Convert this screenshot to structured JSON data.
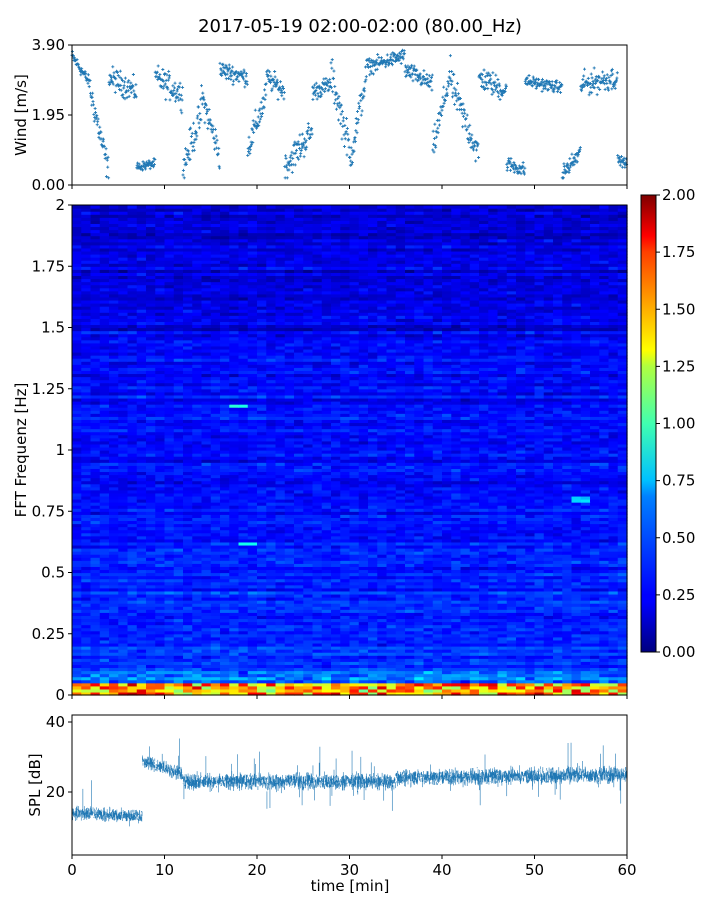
{
  "figure": {
    "title": "2017-05-19 02:00-02:00 (80.00_Hz)"
  },
  "chart_data": [
    {
      "type": "scatter",
      "name": "wind",
      "xlabel": "",
      "ylabel": "Wind [m/s]",
      "xlim": [
        0,
        60
      ],
      "ylim": [
        0,
        3.9
      ],
      "yticks": [
        "0.00",
        "1.95",
        "3.90"
      ],
      "marker_color": "#1f77b4",
      "marker": "+",
      "segments": [
        {
          "x": [
            0,
            2
          ],
          "levels": [
            3.6,
            2.8
          ],
          "spread": 0.4
        },
        {
          "x": [
            2,
            4
          ],
          "levels": [
            2.6,
            0.3
          ],
          "spread": 1.0
        },
        {
          "x": [
            4,
            7
          ],
          "levels": [
            3.0,
            2.6
          ],
          "spread": 0.8
        },
        {
          "x": [
            7,
            9
          ],
          "levels": [
            0.5,
            0.6
          ],
          "spread": 0.3
        },
        {
          "x": [
            9,
            12
          ],
          "levels": [
            3.0,
            2.5
          ],
          "spread": 0.9
        },
        {
          "x": [
            12,
            14
          ],
          "levels": [
            0.5,
            2.0
          ],
          "spread": 1.1
        },
        {
          "x": [
            14,
            16
          ],
          "levels": [
            2.5,
            0.8
          ],
          "spread": 1.0
        },
        {
          "x": [
            16,
            19
          ],
          "levels": [
            3.2,
            3.0
          ],
          "spread": 0.6
        },
        {
          "x": [
            19,
            21
          ],
          "levels": [
            1.0,
            2.5
          ],
          "spread": 1.0
        },
        {
          "x": [
            21,
            23
          ],
          "levels": [
            3.0,
            2.6
          ],
          "spread": 0.7
        },
        {
          "x": [
            23,
            26
          ],
          "levels": [
            0.5,
            1.5
          ],
          "spread": 1.0
        },
        {
          "x": [
            26,
            28
          ],
          "levels": [
            2.6,
            2.8
          ],
          "spread": 0.6
        },
        {
          "x": [
            28,
            30
          ],
          "levels": [
            3.1,
            1.0
          ],
          "spread": 1.2
        },
        {
          "x": [
            30,
            32
          ],
          "levels": [
            0.6,
            3.3
          ],
          "spread": 1.1
        },
        {
          "x": [
            32,
            36
          ],
          "levels": [
            3.3,
            3.6
          ],
          "spread": 0.5
        },
        {
          "x": [
            36,
            39
          ],
          "levels": [
            3.2,
            2.8
          ],
          "spread": 0.6
        },
        {
          "x": [
            39,
            41
          ],
          "levels": [
            1.0,
            3.2
          ],
          "spread": 1.0
        },
        {
          "x": [
            41,
            44
          ],
          "levels": [
            2.8,
            0.8
          ],
          "spread": 1.1
        },
        {
          "x": [
            44,
            47
          ],
          "levels": [
            3.0,
            2.6
          ],
          "spread": 0.8
        },
        {
          "x": [
            47,
            49
          ],
          "levels": [
            0.6,
            0.4
          ],
          "spread": 0.5
        },
        {
          "x": [
            49,
            53
          ],
          "levels": [
            2.9,
            2.7
          ],
          "spread": 0.4
        },
        {
          "x": [
            53,
            55
          ],
          "levels": [
            0.3,
            0.9
          ],
          "spread": 0.6
        },
        {
          "x": [
            55,
            59
          ],
          "levels": [
            2.8,
            3.0
          ],
          "spread": 0.8
        },
        {
          "x": [
            59,
            60
          ],
          "levels": [
            0.7,
            0.6
          ],
          "spread": 0.3
        }
      ]
    },
    {
      "type": "heatmap",
      "name": "spectrogram",
      "xlabel": "",
      "ylabel": "FFT Frequenz [Hz]",
      "xlim": [
        0,
        60
      ],
      "ylim": [
        0,
        2
      ],
      "yticks": [
        "0",
        "0.25",
        "0.5",
        "0.75",
        "1",
        "1.25",
        "1.5",
        "1.75",
        "2"
      ],
      "colormap": "jet",
      "colorbar": {
        "range": [
          0,
          2
        ],
        "ticks": [
          "0.00",
          "0.25",
          "0.50",
          "0.75",
          "1.00",
          "1.25",
          "1.50",
          "1.75",
          "2.00"
        ]
      },
      "profile": {
        "baseline_low_freq": 0.35,
        "baseline_high_freq": 0.18,
        "lowest_band_hz": 0.03,
        "lowest_band_value": 1.3,
        "hot_spots": [
          {
            "t": 7,
            "f": 0.01,
            "v": 2.0
          },
          {
            "t": 9,
            "f": 0.04,
            "v": 1.6
          },
          {
            "t": 16,
            "f": 0.04,
            "v": 1.2
          },
          {
            "t": 20,
            "f": 0.01,
            "v": 1.8
          },
          {
            "t": 24,
            "f": 0.01,
            "v": 1.7
          },
          {
            "t": 28,
            "f": 0.01,
            "v": 2.0
          },
          {
            "t": 29,
            "f": 0.04,
            "v": 1.3
          },
          {
            "t": 34,
            "f": 0.01,
            "v": 1.5
          },
          {
            "t": 44,
            "f": 0.04,
            "v": 1.0
          },
          {
            "t": 56,
            "f": 0.01,
            "v": 1.4
          },
          {
            "t": 18,
            "f": 1.18,
            "v": 0.85
          },
          {
            "t": 19,
            "f": 0.62,
            "v": 0.8
          },
          {
            "t": 55,
            "f": 0.8,
            "v": 0.7
          }
        ]
      }
    },
    {
      "type": "line",
      "name": "spl",
      "xlabel": "time [min]",
      "ylabel": "SPL [dB]",
      "xlim": [
        0,
        60
      ],
      "ylim": [
        2,
        42
      ],
      "yticks": [
        "20",
        "40"
      ],
      "xticks": [
        "0",
        "10",
        "20",
        "30",
        "40",
        "50",
        "60"
      ],
      "line_color": "#1f77b4",
      "segments": [
        {
          "x": [
            0,
            7.6
          ],
          "mean": [
            14,
            13
          ],
          "spread": 5
        },
        {
          "x": [
            7.6,
            12
          ],
          "mean": [
            29,
            25
          ],
          "spread": 5
        },
        {
          "x": [
            12,
            35
          ],
          "mean": [
            23,
            23
          ],
          "spread": 6
        },
        {
          "x": [
            35,
            60
          ],
          "mean": [
            24,
            25
          ],
          "spread": 6
        }
      ]
    }
  ]
}
